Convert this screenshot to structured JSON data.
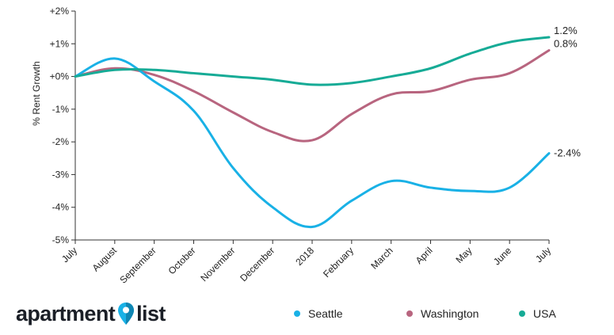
{
  "chart_data": {
    "type": "line",
    "title": "",
    "xlabel": "",
    "ylabel": "% Rent Growth",
    "x": [
      "July",
      "August",
      "September",
      "October",
      "November",
      "December",
      "2018",
      "February",
      "March",
      "April",
      "May",
      "June",
      "July"
    ],
    "ylim": [
      -5,
      2
    ],
    "yticks": [
      {
        "value": 2,
        "label": "+2%"
      },
      {
        "value": 1,
        "label": "+1%"
      },
      {
        "value": 0,
        "label": "+0%"
      },
      {
        "value": -1,
        "label": "-1%"
      },
      {
        "value": -2,
        "label": "-2%"
      },
      {
        "value": -3,
        "label": "-3%"
      },
      {
        "value": -4,
        "label": "-4%"
      },
      {
        "value": -5,
        "label": "-5%"
      }
    ],
    "series": [
      {
        "name": "Seattle",
        "color": "#19b1e6",
        "values": [
          0.0,
          0.55,
          -0.15,
          -1.05,
          -2.8,
          -4.0,
          -4.6,
          -3.8,
          -3.2,
          -3.4,
          -3.5,
          -3.4,
          -2.35
        ],
        "end_label": "-2.4%"
      },
      {
        "name": "Washington",
        "color": "#b8657f",
        "values": [
          0.0,
          0.25,
          0.05,
          -0.45,
          -1.1,
          -1.7,
          -1.95,
          -1.15,
          -0.55,
          -0.45,
          -0.1,
          0.1,
          0.8
        ],
        "end_label": "0.8%"
      },
      {
        "name": "USA",
        "color": "#16ab96",
        "values": [
          0.0,
          0.2,
          0.2,
          0.1,
          0.0,
          -0.1,
          -0.25,
          -0.2,
          0.0,
          0.25,
          0.7,
          1.05,
          1.2
        ],
        "end_label": "1.2%"
      }
    ],
    "grid": false,
    "legend_position": "bottom"
  },
  "brand": {
    "name_left": "apartment",
    "name_right": "list",
    "pin_color": "#19b1e6"
  }
}
